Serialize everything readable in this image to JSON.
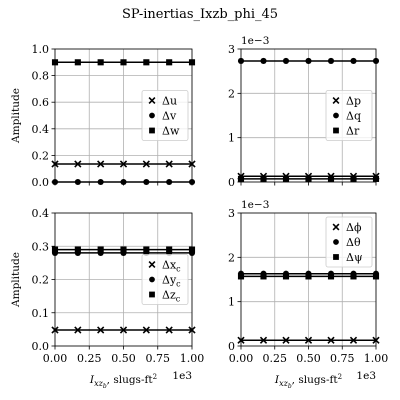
{
  "figure": {
    "title": "SP-inertias_Ixzb_phi_45"
  },
  "chart_data": [
    {
      "type": "line",
      "position": "top-left",
      "ylabel": "Amplitude",
      "xlim": [
        0,
        1000
      ],
      "ylim": [
        0,
        1.0
      ],
      "xticks": [
        0,
        250,
        500,
        750,
        1000
      ],
      "xtick_labels": [],
      "yticks": [
        0,
        0.2,
        0.4,
        0.6,
        0.8,
        1.0
      ],
      "ytick_labels": [
        "0.0",
        "0.2",
        "0.4",
        "0.6",
        "0.8",
        "1.0"
      ],
      "y_multiplier": "",
      "x_multiplier": "",
      "xlabel": "",
      "legend_loc": "center-right",
      "grid": true,
      "series": [
        {
          "name": "Δu",
          "marker": "x",
          "x": [
            0,
            166.7,
            333.3,
            500,
            666.7,
            833.3,
            1000
          ],
          "values": [
            0.135,
            0.135,
            0.135,
            0.135,
            0.135,
            0.135,
            0.135
          ]
        },
        {
          "name": "Δv",
          "marker": "circle",
          "x": [
            0,
            166.7,
            333.3,
            500,
            666.7,
            833.3,
            1000
          ],
          "values": [
            0.0,
            0.0,
            0.0,
            0.0,
            0.0,
            0.0,
            0.0
          ]
        },
        {
          "name": "Δw",
          "marker": "square",
          "x": [
            0,
            166.7,
            333.3,
            500,
            666.7,
            833.3,
            1000
          ],
          "values": [
            0.9,
            0.9,
            0.9,
            0.9,
            0.9,
            0.9,
            0.9
          ]
        }
      ]
    },
    {
      "type": "line",
      "position": "top-right",
      "ylabel": "",
      "xlim": [
        0,
        1000
      ],
      "ylim": [
        0,
        3
      ],
      "xticks": [
        0,
        250,
        500,
        750,
        1000
      ],
      "xtick_labels": [],
      "yticks": [
        0,
        1,
        2,
        3
      ],
      "ytick_labels": [
        "0",
        "1",
        "2",
        "3"
      ],
      "y_multiplier": "1e−3",
      "x_multiplier": "",
      "xlabel": "",
      "legend_loc": "center-right",
      "grid": true,
      "series": [
        {
          "name": "Δp",
          "marker": "x",
          "x": [
            0,
            166.7,
            333.3,
            500,
            666.7,
            833.3,
            1000
          ],
          "values": [
            0.13,
            0.13,
            0.13,
            0.13,
            0.13,
            0.13,
            0.13
          ]
        },
        {
          "name": "Δq",
          "marker": "circle",
          "x": [
            0,
            166.7,
            333.3,
            500,
            666.7,
            833.3,
            1000
          ],
          "values": [
            2.73,
            2.73,
            2.73,
            2.73,
            2.73,
            2.73,
            2.73
          ]
        },
        {
          "name": "Δr",
          "marker": "square",
          "x": [
            0,
            166.7,
            333.3,
            500,
            666.7,
            833.3,
            1000
          ],
          "values": [
            0.07,
            0.07,
            0.07,
            0.07,
            0.07,
            0.07,
            0.07
          ]
        }
      ]
    },
    {
      "type": "line",
      "position": "bottom-left",
      "ylabel": "Amplitude",
      "xlim": [
        0,
        1000
      ],
      "ylim": [
        0,
        0.4
      ],
      "xticks": [
        0,
        250,
        500,
        750,
        1000
      ],
      "xtick_labels": [
        "0.00",
        "0.25",
        "0.50",
        "0.75",
        "1.00"
      ],
      "yticks": [
        0,
        0.1,
        0.2,
        0.3,
        0.4
      ],
      "ytick_labels": [
        "0.0",
        "0.1",
        "0.2",
        "0.3",
        "0.4"
      ],
      "y_multiplier": "",
      "x_multiplier": "1e3",
      "xlabel_var": "I",
      "xlabel_sub": "xz",
      "xlabel_subsub": "b",
      "xlabel_rest": ", slugs-ft",
      "xlabel_sup": "2",
      "legend_loc": "center-right",
      "grid": true,
      "series": [
        {
          "name_main": "Δx",
          "name_sub": "c",
          "marker": "x",
          "x": [
            0,
            166.7,
            333.3,
            500,
            666.7,
            833.3,
            1000
          ],
          "values": [
            0.048,
            0.048,
            0.048,
            0.048,
            0.048,
            0.048,
            0.048
          ]
        },
        {
          "name_main": "Δy",
          "name_sub": "c",
          "marker": "circle",
          "x": [
            0,
            166.7,
            333.3,
            500,
            666.7,
            833.3,
            1000
          ],
          "values": [
            0.28,
            0.28,
            0.28,
            0.28,
            0.28,
            0.28,
            0.28
          ]
        },
        {
          "name_main": "Δz",
          "name_sub": "c",
          "marker": "square",
          "x": [
            0,
            166.7,
            333.3,
            500,
            666.7,
            833.3,
            1000
          ],
          "values": [
            0.29,
            0.29,
            0.29,
            0.29,
            0.29,
            0.29,
            0.29
          ]
        }
      ]
    },
    {
      "type": "line",
      "position": "bottom-right",
      "ylabel": "",
      "xlim": [
        0,
        1000
      ],
      "ylim": [
        0,
        3
      ],
      "xticks": [
        0,
        250,
        500,
        750,
        1000
      ],
      "xtick_labels": [
        "0.00",
        "0.25",
        "0.50",
        "0.75",
        "1.00"
      ],
      "yticks": [
        0,
        1,
        2,
        3
      ],
      "ytick_labels": [
        "0",
        "1",
        "2",
        "3"
      ],
      "y_multiplier": "1e−3",
      "x_multiplier": "1e3",
      "xlabel_var": "I",
      "xlabel_sub": "xz",
      "xlabel_subsub": "b",
      "xlabel_rest": ", slugs-ft",
      "xlabel_sup": "2",
      "legend_loc": "upper-right",
      "grid": true,
      "series": [
        {
          "name": "Δϕ",
          "marker": "x",
          "x": [
            0,
            166.7,
            333.3,
            500,
            666.7,
            833.3,
            1000
          ],
          "values": [
            0.13,
            0.13,
            0.13,
            0.13,
            0.13,
            0.13,
            0.13
          ]
        },
        {
          "name": "Δθ",
          "marker": "circle",
          "x": [
            0,
            166.7,
            333.3,
            500,
            666.7,
            833.3,
            1000
          ],
          "values": [
            1.63,
            1.63,
            1.63,
            1.63,
            1.63,
            1.63,
            1.63
          ]
        },
        {
          "name": "Δψ",
          "marker": "square",
          "x": [
            0,
            166.7,
            333.3,
            500,
            666.7,
            833.3,
            1000
          ],
          "values": [
            1.57,
            1.57,
            1.57,
            1.57,
            1.57,
            1.57,
            1.57
          ]
        }
      ]
    }
  ]
}
